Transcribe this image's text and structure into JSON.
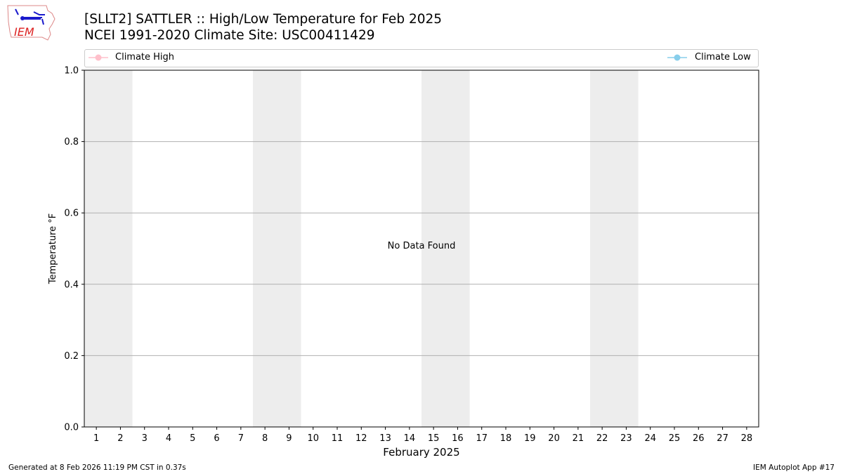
{
  "title": "[SLLT2] SATTLER :: High/Low Temperature for Feb 2025",
  "subtitle": "NCEI 1991-2020 Climate Site: USC00411429",
  "footer_left": "Generated at 8 Feb 2026 11:19 PM CST in 0.37s",
  "footer_right": "IEM Autoplot App #17",
  "logo_text": "IEM",
  "chart_data": {
    "type": "line",
    "title": "[SLLT2] SATTLER :: High/Low Temperature for Feb 2025",
    "xlabel": "February 2025",
    "ylabel": "Temperature °F",
    "xlim": [
      0.5,
      28.5
    ],
    "ylim": [
      0,
      1
    ],
    "x_ticks": [
      1,
      2,
      3,
      4,
      5,
      6,
      7,
      8,
      9,
      10,
      11,
      12,
      13,
      14,
      15,
      16,
      17,
      18,
      19,
      20,
      21,
      22,
      23,
      24,
      25,
      26,
      27,
      28
    ],
    "y_ticks": [
      "0.0",
      "0.2",
      "0.4",
      "0.6",
      "0.8",
      "1.0"
    ],
    "grid": "horizontal",
    "weekend_shading": [
      [
        0.5,
        2.5
      ],
      [
        7.5,
        9.5
      ],
      [
        14.5,
        16.5
      ],
      [
        21.5,
        23.5
      ]
    ],
    "shade_color": "#ededed",
    "annotation": "No Data Found",
    "legend_placement": "top",
    "series": [
      {
        "name": "Climate High",
        "color": "#ffc0cb",
        "values": []
      },
      {
        "name": "Climate Low",
        "color": "#87ceeb",
        "values": []
      }
    ]
  }
}
